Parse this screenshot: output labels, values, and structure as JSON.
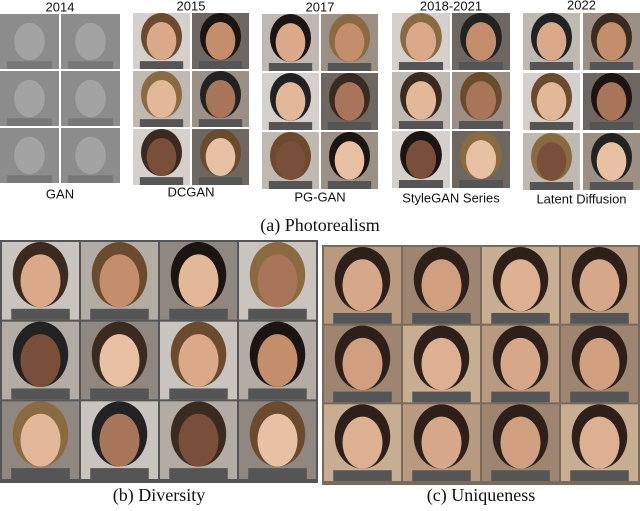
{
  "photorealism": {
    "groups": [
      {
        "year": "2014",
        "model": "GAN"
      },
      {
        "year": "2015",
        "model": "DCGAN"
      },
      {
        "year": "2017",
        "model": "PG-GAN"
      },
      {
        "year": "2018-2021",
        "model": "StyleGAN Series"
      },
      {
        "year": "2022",
        "model": "Latent Diffusion"
      }
    ],
    "caption": "(a) Photorealism"
  },
  "panels": [
    {
      "caption": "(b) Diversity"
    },
    {
      "caption": "(c) Uniqueness"
    }
  ]
}
